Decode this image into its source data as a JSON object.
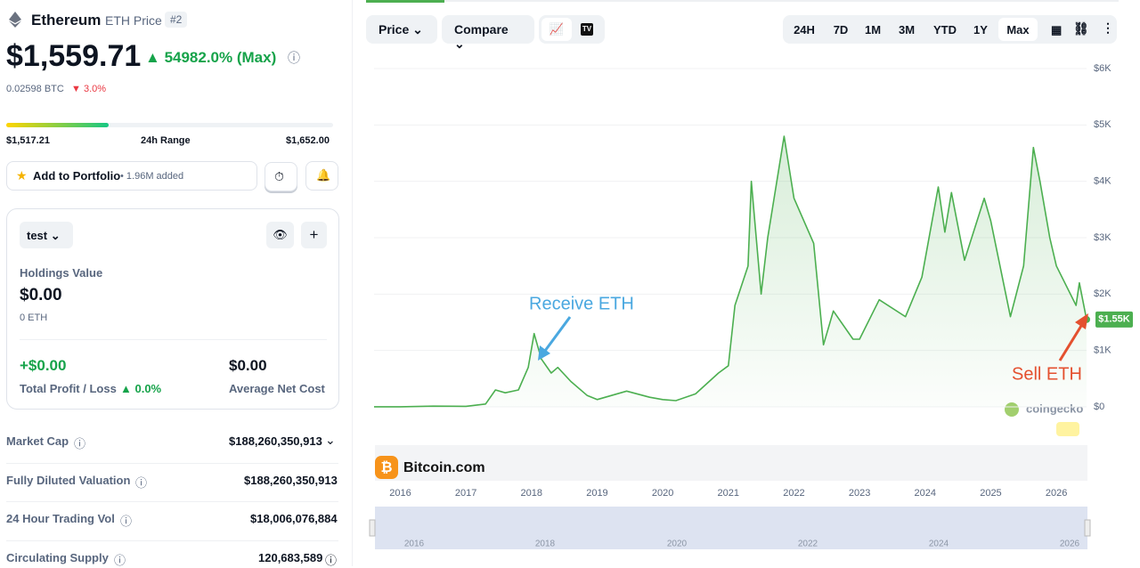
{
  "header": {
    "name": "Ethereum",
    "symbol": "ETH Price",
    "rank": "#2",
    "price": "$1,559.71",
    "change": "54982.0% (Max)",
    "btc_price": "0.02598 BTC",
    "btc_change": "3.0%"
  },
  "range": {
    "low": "$1,517.21",
    "label": "24h Range",
    "high": "$1,652.00"
  },
  "portfolio_button": {
    "label": "Add to Portfolio",
    "added": "• 1.96M added"
  },
  "portfolio": {
    "selector": "test",
    "holdings_label": "Holdings Value",
    "holdings": "$0.00",
    "holdings_eth": "0 ETH",
    "profit": "+$0.00",
    "profit_label": "Total Profit / Loss",
    "profit_pct": "0.0%",
    "avg": "$0.00",
    "avg_label": "Average Net Cost"
  },
  "stats": [
    {
      "label": "Market Cap",
      "value": "$188,260,350,913"
    },
    {
      "label": "Fully Diluted Valuation",
      "value": "$188,260,350,913"
    },
    {
      "label": "24 Hour Trading Vol",
      "value": "$18,006,076,884"
    },
    {
      "label": "Circulating Supply",
      "value": "120,683,589"
    }
  ],
  "toolbar": {
    "tabs": [
      "Price",
      "Compare"
    ],
    "ranges": [
      "24H",
      "7D",
      "1M",
      "3M",
      "YTD",
      "1Y",
      "Max"
    ]
  },
  "chart_data": {
    "type": "line",
    "color": "#4caf50",
    "x": [
      2015.6,
      2016.0,
      2016.5,
      2017.0,
      2017.3,
      2017.45,
      2017.6,
      2017.8,
      2017.95,
      2018.04,
      2018.15,
      2018.3,
      2018.4,
      2018.6,
      2018.85,
      2019.0,
      2019.45,
      2019.8,
      2020.0,
      2020.2,
      2020.5,
      2020.85,
      2021.0,
      2021.1,
      2021.3,
      2021.35,
      2021.5,
      2021.6,
      2021.85,
      2022.0,
      2022.3,
      2022.45,
      2022.6,
      2022.9,
      2023.0,
      2023.3,
      2023.7,
      2023.95,
      2024.2,
      2024.3,
      2024.4,
      2024.6,
      2024.9,
      2025.0,
      2025.3,
      2025.5,
      2025.65,
      2025.75,
      2025.9,
      2026.0,
      2026.3,
      2026.35,
      2026.46
    ],
    "series": [
      {
        "name": "Price",
        "values": [
          1,
          1,
          12,
          10,
          50,
          300,
          250,
          300,
          700,
          1300,
          850,
          600,
          700,
          450,
          200,
          130,
          280,
          170,
          130,
          110,
          230,
          600,
          730,
          1800,
          2500,
          4000,
          2000,
          3000,
          4800,
          3700,
          2900,
          1100,
          1700,
          1200,
          1200,
          1900,
          1600,
          2300,
          3900,
          3100,
          3800,
          2600,
          3700,
          3300,
          1600,
          2500,
          4600,
          4000,
          3000,
          2500,
          1800,
          2200,
          1550
        ]
      }
    ],
    "current_label": "$1.55K",
    "xlim": [
      2015.6,
      2026.46
    ],
    "xticks": [
      2016,
      2017,
      2018,
      2019,
      2020,
      2021,
      2022,
      2023,
      2024,
      2025,
      2026
    ],
    "ylim": [
      0,
      6000
    ],
    "yticks": [
      {
        "value": 0,
        "label": "$0"
      },
      {
        "value": 1000,
        "label": "$1K"
      },
      {
        "value": 2000,
        "label": "$2K"
      },
      {
        "value": 3000,
        "label": "$3K"
      },
      {
        "value": 4000,
        "label": "$4K"
      },
      {
        "value": 5000,
        "label": "$5K"
      },
      {
        "value": 6000,
        "label": "$6K"
      }
    ],
    "grid": true,
    "annotations": [
      "Receive ETH",
      "Sell ETH"
    ],
    "watermarks": [
      "coingecko",
      "Bitcoin.com"
    ],
    "navigator_ticks": [
      "2016",
      "2018",
      "2020",
      "2022",
      "2024",
      "2026"
    ]
  }
}
